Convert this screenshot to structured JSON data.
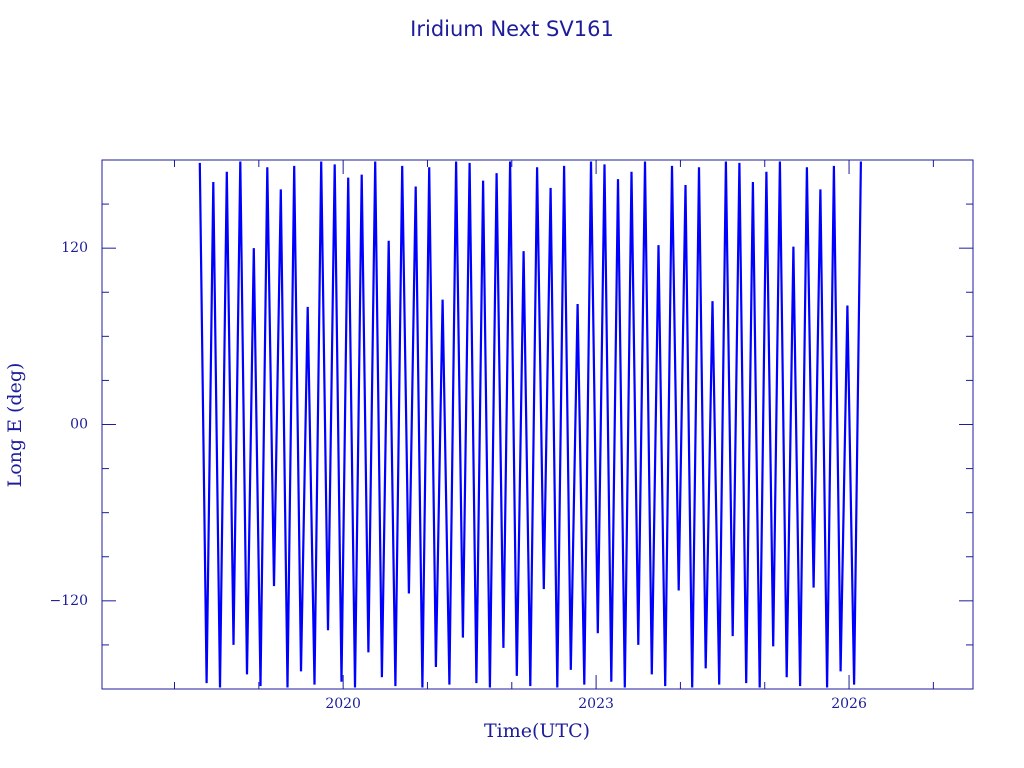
{
  "chart_data": {
    "type": "line",
    "title": "Iridium Next SV161",
    "xlabel": "Time(UTC)",
    "ylabel": "Long E (deg)",
    "x": [
      2018.3,
      2018.38,
      2018.46,
      2018.54,
      2018.62,
      2018.7,
      2018.78,
      2018.86,
      2018.94,
      2019.02,
      2019.1,
      2019.18,
      2019.26,
      2019.34,
      2019.42,
      2019.5,
      2019.58,
      2019.66,
      2019.74,
      2019.82,
      2019.9,
      2019.98,
      2020.06,
      2020.14,
      2020.22,
      2020.3,
      2020.38,
      2020.46,
      2020.54,
      2020.62,
      2020.7,
      2020.78,
      2020.86,
      2020.94,
      2021.02,
      2021.1,
      2021.18,
      2021.26,
      2021.34,
      2021.42,
      2021.5,
      2021.58,
      2021.66,
      2021.74,
      2021.82,
      2021.9,
      2021.98,
      2022.06,
      2022.14,
      2022.22,
      2022.3,
      2022.38,
      2022.46,
      2022.54,
      2022.62,
      2022.7,
      2022.78,
      2022.86,
      2022.94,
      2023.02,
      2023.1,
      2023.18,
      2023.26,
      2023.34,
      2023.42,
      2023.5,
      2023.58,
      2023.66,
      2023.74,
      2023.82,
      2023.9,
      2023.98,
      2024.06,
      2024.14,
      2024.22,
      2024.3,
      2024.38,
      2024.46,
      2024.54,
      2024.62,
      2024.7,
      2024.78,
      2024.86,
      2024.94,
      2025.02,
      2025.1,
      2025.18,
      2025.26,
      2025.34,
      2025.42,
      2025.5,
      2025.58,
      2025.66,
      2025.74,
      2025.82,
      2025.9,
      2025.98,
      2026.06,
      2026.14
    ],
    "series": [
      {
        "name": "SV161",
        "color": "#0000ff",
        "values": [
          178,
          -176,
          165,
          -179,
          172,
          -150,
          179,
          -170,
          120,
          -178,
          175,
          -110,
          160,
          -179,
          176,
          -168,
          80,
          -177,
          179,
          -140,
          177,
          -175,
          168,
          -179,
          170,
          -155,
          179,
          -172,
          125,
          -178,
          176,
          -115,
          162,
          -179,
          175,
          -165,
          85,
          -177,
          179,
          -145,
          178,
          -176,
          166,
          -179,
          171,
          -152,
          179,
          -171,
          118,
          -178,
          175,
          -112,
          161,
          -179,
          176,
          -167,
          82,
          -177,
          179,
          -142,
          177,
          -175,
          167,
          -179,
          172,
          -150,
          179,
          -170,
          122,
          -178,
          176,
          -113,
          163,
          -179,
          175,
          -166,
          84,
          -177,
          179,
          -144,
          178,
          -176,
          165,
          -179,
          172,
          -151,
          179,
          -172,
          121,
          -178,
          175,
          -111,
          160,
          -179,
          176,
          -168,
          81,
          -177,
          179
        ]
      }
    ],
    "xlim": [
      2017.14,
      2027.47
    ],
    "ylim": [
      -180,
      180
    ],
    "xticks": [
      2020,
      2023,
      2026
    ],
    "xminorticks": [
      2018,
      2019,
      2021,
      2022,
      2024,
      2025,
      2027
    ],
    "yticks": [
      {
        "value": 120,
        "label": "120"
      },
      {
        "value": 0,
        "label": "00"
      },
      {
        "value": -120,
        "label": "−120"
      }
    ],
    "yminorticks": [
      -150,
      -90,
      -60,
      -30,
      30,
      60,
      90,
      150
    ],
    "grid": false
  }
}
